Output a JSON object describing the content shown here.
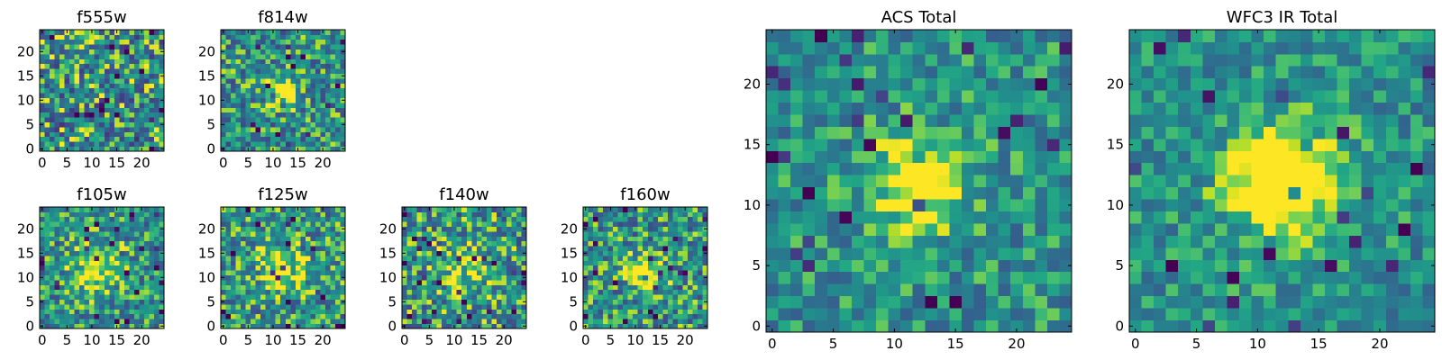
{
  "chart_data": [
    {
      "type": "heatmap",
      "title": "f555w",
      "colormap": "viridis",
      "grid_size": 25,
      "xlim": [
        -0.5,
        24.5
      ],
      "ylim": [
        -0.5,
        24.5
      ],
      "xticks": [
        0,
        5,
        10,
        15,
        20
      ],
      "yticks": [
        0,
        5,
        10,
        15,
        20
      ],
      "xtick_labels": [
        "0",
        "5",
        "10",
        "15",
        "20"
      ],
      "ytick_labels": [
        "0",
        "5",
        "10",
        "15",
        "20"
      ],
      "seed": 11,
      "peak": {
        "x": 12,
        "y": 12,
        "amplitude": 0.0,
        "sigma": 3.0
      },
      "noise": 0.9
    },
    {
      "type": "heatmap",
      "title": "f814w",
      "colormap": "viridis",
      "grid_size": 25,
      "xlim": [
        -0.5,
        24.5
      ],
      "ylim": [
        -0.5,
        24.5
      ],
      "xticks": [
        0,
        5,
        10,
        15,
        20
      ],
      "yticks": [
        0,
        5,
        10,
        15,
        20
      ],
      "xtick_labels": [
        "0",
        "5",
        "10",
        "15",
        "20"
      ],
      "ytick_labels": [
        "0",
        "5",
        "10",
        "15",
        "20"
      ],
      "seed": 23,
      "peak": {
        "x": 12,
        "y": 12,
        "amplitude": 0.55,
        "sigma": 2.0
      },
      "noise": 0.75
    },
    {
      "type": "heatmap",
      "title": "f105w",
      "colormap": "viridis",
      "grid_size": 25,
      "xlim": [
        -0.5,
        24.5
      ],
      "ylim": [
        -0.5,
        24.5
      ],
      "xticks": [
        0,
        5,
        10,
        15,
        20
      ],
      "yticks": [
        0,
        5,
        10,
        15,
        20
      ],
      "xtick_labels": [
        "0",
        "5",
        "10",
        "15",
        "20"
      ],
      "ytick_labels": [
        "0",
        "5",
        "10",
        "15",
        "20"
      ],
      "seed": 37,
      "peak": {
        "x": 11,
        "y": 12,
        "amplitude": 0.4,
        "sigma": 3.5
      },
      "noise": 0.7
    },
    {
      "type": "heatmap",
      "title": "f125w",
      "colormap": "viridis",
      "grid_size": 25,
      "xlim": [
        -0.5,
        24.5
      ],
      "ylim": [
        -0.5,
        24.5
      ],
      "xticks": [
        0,
        5,
        10,
        15,
        20
      ],
      "yticks": [
        0,
        5,
        10,
        15,
        20
      ],
      "xtick_labels": [
        "0",
        "5",
        "10",
        "15",
        "20"
      ],
      "ytick_labels": [
        "0",
        "5",
        "10",
        "15",
        "20"
      ],
      "seed": 41,
      "peak": {
        "x": 12,
        "y": 12,
        "amplitude": 0.35,
        "sigma": 3.5
      },
      "noise": 0.75
    },
    {
      "type": "heatmap",
      "title": "f140w",
      "colormap": "viridis",
      "grid_size": 25,
      "xlim": [
        -0.5,
        24.5
      ],
      "ylim": [
        -0.5,
        24.5
      ],
      "xticks": [
        0,
        5,
        10,
        15,
        20
      ],
      "yticks": [
        0,
        5,
        10,
        15,
        20
      ],
      "xtick_labels": [
        "0",
        "5",
        "10",
        "15",
        "20"
      ],
      "ytick_labels": [
        "0",
        "5",
        "10",
        "15",
        "20"
      ],
      "seed": 53,
      "peak": {
        "x": 12,
        "y": 12,
        "amplitude": 0.3,
        "sigma": 3.5
      },
      "noise": 0.8
    },
    {
      "type": "heatmap",
      "title": "f160w",
      "colormap": "viridis",
      "grid_size": 25,
      "xlim": [
        -0.5,
        24.5
      ],
      "ylim": [
        -0.5,
        24.5
      ],
      "xticks": [
        0,
        5,
        10,
        15,
        20
      ],
      "yticks": [
        0,
        5,
        10,
        15,
        20
      ],
      "xtick_labels": [
        "0",
        "5",
        "10",
        "15",
        "20"
      ],
      "ytick_labels": [
        "0",
        "5",
        "10",
        "15",
        "20"
      ],
      "seed": 67,
      "peak": {
        "x": 12,
        "y": 11,
        "amplitude": 0.5,
        "sigma": 2.5
      },
      "noise": 0.75
    },
    {
      "type": "heatmap",
      "title": "ACS Total",
      "colormap": "viridis",
      "grid_size": 25,
      "xlim": [
        -0.5,
        24.5
      ],
      "ylim": [
        -0.5,
        24.5
      ],
      "xticks": [
        0,
        5,
        10,
        15,
        20
      ],
      "yticks": [
        0,
        5,
        10,
        15,
        20
      ],
      "xtick_labels": [
        "0",
        "5",
        "10",
        "15",
        "20"
      ],
      "ytick_labels": [
        "0",
        "5",
        "10",
        "15",
        "20"
      ],
      "seed": 79,
      "peak": {
        "x": 12,
        "y": 12,
        "amplitude": 0.6,
        "sigma": 2.5
      },
      "noise": 0.55
    },
    {
      "type": "heatmap",
      "title": "WFC3 IR Total",
      "colormap": "viridis",
      "grid_size": 25,
      "xlim": [
        -0.5,
        24.5
      ],
      "ylim": [
        -0.5,
        24.5
      ],
      "xticks": [
        0,
        5,
        10,
        15,
        20
      ],
      "yticks": [
        0,
        5,
        10,
        15,
        20
      ],
      "xtick_labels": [
        "0",
        "5",
        "10",
        "15",
        "20"
      ],
      "ytick_labels": [
        "0",
        "5",
        "10",
        "15",
        "20"
      ],
      "seed": 97,
      "peak": {
        "x": 12,
        "y": 12,
        "amplitude": 0.8,
        "sigma": 3.0
      },
      "noise": 0.5
    }
  ]
}
